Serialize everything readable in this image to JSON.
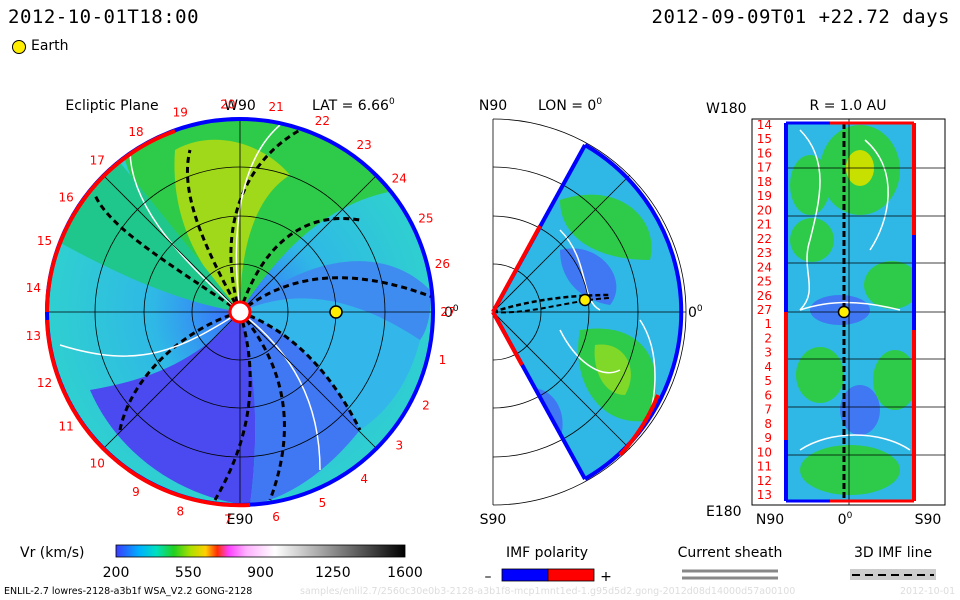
{
  "header": {
    "time_left": "2012-10-01T18:00",
    "time_right": "2012-09-09T01 +22.72 days"
  },
  "legend": {
    "earth_label": "Earth",
    "earth_color": "#ffee00"
  },
  "ecliptic": {
    "title": "Ecliptic Plane",
    "top_label": "W90",
    "bottom_label": "E90",
    "lat_label": "LAT = 6.66",
    "lat_sup": "0",
    "zero_label": "0",
    "zero_sup": "0",
    "carrington": [
      "1",
      "2",
      "3",
      "4",
      "5",
      "6",
      "7",
      "8",
      "9",
      "10",
      "11",
      "12",
      "13",
      "14",
      "15",
      "16",
      "17",
      "18",
      "19",
      "20",
      "21",
      "22",
      "23",
      "24",
      "25",
      "26",
      "27"
    ]
  },
  "meridional": {
    "top_label": "N90",
    "bottom_label": "S90",
    "lon_label": "LON = 0",
    "lon_sup": "0",
    "zero_label": "0",
    "zero_sup": "0"
  },
  "synoptic": {
    "title": "R = 1.0 AU",
    "top_left": "W180",
    "bottom_left": "E180",
    "x_left": "N90",
    "x_mid": "0",
    "x_mid_sup": "0",
    "x_right": "S90",
    "y_labels": [
      "14",
      "15",
      "16",
      "17",
      "18",
      "19",
      "20",
      "21",
      "22",
      "23",
      "24",
      "25",
      "26",
      "27",
      "1",
      "2",
      "3",
      "4",
      "5",
      "6",
      "7",
      "8",
      "9",
      "10",
      "11",
      "12",
      "13"
    ]
  },
  "colorbar": {
    "label": "Vr (km/s)",
    "ticks": [
      "200",
      "550",
      "900",
      "1250",
      "1600"
    ]
  },
  "imf": {
    "label": "IMF polarity",
    "minus": "–",
    "plus": "+",
    "neg_color": "#0000ff",
    "pos_color": "#ff0000"
  },
  "sheath": {
    "label": "Current sheath"
  },
  "imf3d": {
    "label": "3D IMF line"
  },
  "footer": {
    "model": "ENLIL-2.7 lowres-2128-a3b1f WSA_V2.2 GONG-2128",
    "path": "samples/enlil2.7/2560c30e0b3-2128-a3b1f8-mcp1mnt1ed-1.g95d5d2.gong-2012d08d14000d57a00100",
    "date": "2012-10-01"
  }
}
